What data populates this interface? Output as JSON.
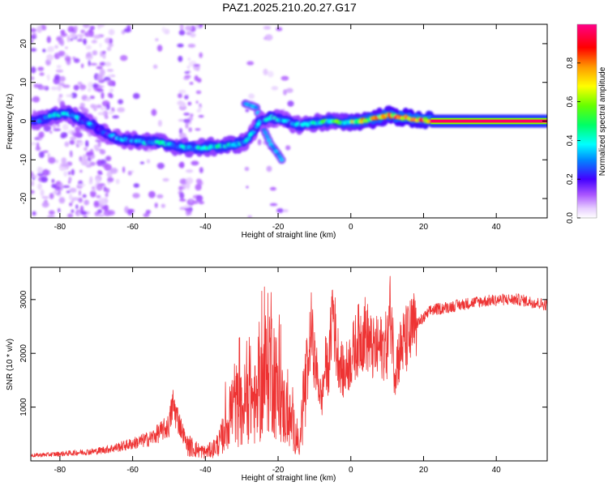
{
  "figure": {
    "title": "PAZ1.2025.210.20.27.G17"
  },
  "chart_data": [
    {
      "type": "heatmap",
      "xlabel": "Height of straight line (km)",
      "ylabel": "Frequency (Hz)",
      "xlim": [
        -88,
        54
      ],
      "ylim": [
        -25,
        25
      ],
      "xticks": [
        -80,
        -60,
        -40,
        -20,
        0,
        20,
        40
      ],
      "yticks": [
        -20,
        -10,
        0,
        10,
        20
      ],
      "colorbar": {
        "label": "Normalized spectral amplitude",
        "range": [
          0.0,
          1.0
        ],
        "ticks": [
          0.0,
          0.2,
          0.4,
          0.6,
          0.8
        ],
        "colormap": "rainbow (white-magenta-violet-blue-cyan-green-yellow-orange-red-pink)"
      },
      "ridge": {
        "x": [
          -86,
          -82,
          -78,
          -72,
          -68,
          -64,
          -60,
          -56,
          -52,
          -48,
          -44,
          -40,
          -36,
          -32,
          -29,
          -27,
          -25,
          -22,
          -18,
          -14,
          -10,
          -6,
          -2,
          2,
          6,
          10,
          14,
          18,
          22,
          30,
          40,
          54
        ],
        "y": [
          0,
          1.5,
          2,
          -0.5,
          -3,
          -4.5,
          -5,
          -5.5,
          -5.5,
          -6.5,
          -7,
          -6.8,
          -6.5,
          -6,
          -5.5,
          -3,
          0,
          1,
          0,
          -1,
          -0.5,
          0,
          -0.5,
          0,
          0.5,
          1.5,
          1,
          0.5,
          0,
          0,
          0,
          0
        ],
        "amplitude": [
          0.3,
          0.35,
          0.35,
          0.3,
          0.25,
          0.3,
          0.3,
          0.35,
          0.4,
          0.35,
          0.4,
          0.4,
          0.4,
          0.45,
          0.35,
          0.3,
          0.3,
          0.35,
          0.3,
          0.35,
          0.4,
          0.45,
          0.5,
          0.65,
          0.7,
          0.75,
          0.8,
          0.85,
          0.92,
          0.95,
          0.97,
          1.0
        ]
      },
      "secondary_branch": {
        "x": [
          -29,
          -26,
          -24,
          -22,
          -20,
          -19
        ],
        "y": [
          4.5,
          3.5,
          -2,
          -6,
          -8.5,
          -10
        ]
      },
      "grid": false
    },
    {
      "type": "line",
      "xlabel": "Height of straight line (km)",
      "ylabel": "SNR (10 * v/v)",
      "xlim": [
        -88,
        54
      ],
      "ylim": [
        0,
        3600
      ],
      "xticks": [
        -80,
        -60,
        -40,
        -20,
        0,
        20,
        40
      ],
      "yticks": [
        1000,
        2000,
        3000
      ],
      "color": "#ee3333",
      "series": [
        {
          "x": [
            -88,
            -80,
            -70,
            -65,
            -60,
            -55,
            -50,
            -49,
            -45,
            -42,
            -40,
            -38,
            -36,
            -34,
            -32,
            -30,
            -28,
            -26,
            -24,
            -22,
            -20,
            -18,
            -16,
            -14,
            -13,
            -12,
            -11,
            -10,
            -8,
            -7,
            -6,
            -5,
            -4,
            -2,
            0,
            2,
            4,
            6,
            8,
            10,
            11,
            12,
            14,
            16,
            18,
            20,
            22,
            26,
            30,
            34,
            38,
            42,
            46,
            50,
            54
          ],
          "y": [
            100,
            130,
            180,
            240,
            320,
            420,
            650,
            1050,
            300,
            200,
            160,
            220,
            350,
            700,
            1100,
            900,
            1300,
            1000,
            1500,
            2000,
            1200,
            900,
            650,
            250,
            1200,
            1400,
            2500,
            1900,
            1100,
            1800,
            1700,
            3000,
            2100,
            1600,
            1900,
            2250,
            2400,
            2050,
            2100,
            2150,
            2850,
            1700,
            2150,
            2300,
            2550,
            2650,
            2800,
            2850,
            2900,
            2950,
            2980,
            3000,
            3000,
            2950,
            2900
          ]
        }
      ],
      "grid": false
    }
  ]
}
